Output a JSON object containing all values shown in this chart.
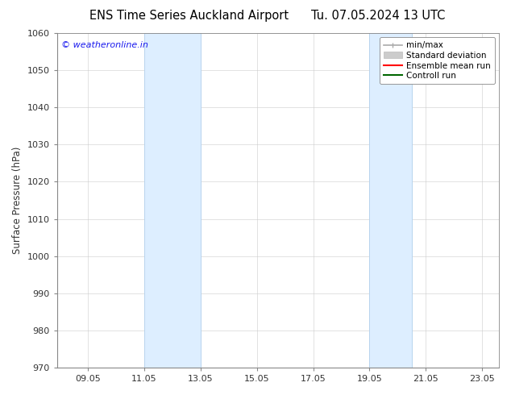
{
  "title": "ENS Time Series Auckland Airport",
  "title2": "Tu. 07.05.2024 13 UTC",
  "ylabel": "Surface Pressure (hPa)",
  "ylim": [
    970,
    1060
  ],
  "yticks": [
    970,
    980,
    990,
    1000,
    1010,
    1020,
    1030,
    1040,
    1050,
    1060
  ],
  "xtick_labels": [
    "09.05",
    "11.05",
    "13.05",
    "15.05",
    "17.05",
    "19.05",
    "21.05",
    "23.05"
  ],
  "xtick_positions": [
    9,
    11,
    13,
    15,
    17,
    19,
    21,
    23
  ],
  "xlim": [
    7.9,
    23.6
  ],
  "shaded_bands": [
    {
      "x_start": 11.0,
      "x_end": 13.0
    },
    {
      "x_start": 19.0,
      "x_end": 20.5
    }
  ],
  "shade_color": "#ddeeff",
  "shade_edge_color": "#b8d4ee",
  "watermark": "© weatheronline.in",
  "watermark_color": "#1a1aee",
  "background_color": "#ffffff",
  "title_fontsize": 10.5,
  "axis_fontsize": 8.5,
  "tick_fontsize": 8,
  "legend_fontsize": 7.5,
  "minmax_color": "#aaaaaa",
  "std_color": "#cccccc",
  "std_edge_color": "#bbbbbb",
  "ensemble_color": "#ff0000",
  "control_color": "#006600",
  "spine_color": "#888888",
  "tick_color": "#333333"
}
